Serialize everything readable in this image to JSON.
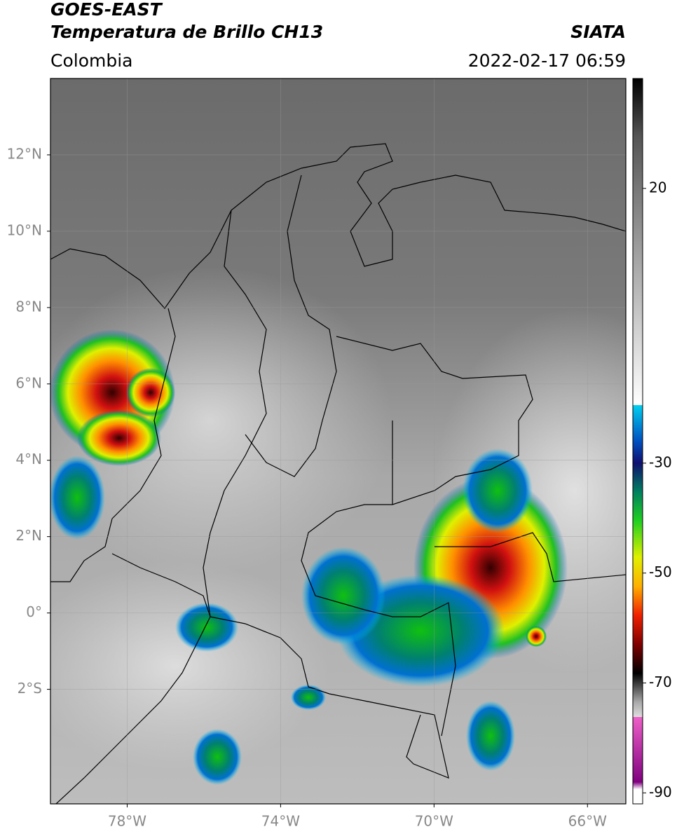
{
  "header": {
    "title": "GOES-EAST",
    "subtitle": "Temperatura de Brillo CH13",
    "source": "SIATA",
    "region": "Colombia",
    "datetime": "2022-02-17 06:59"
  },
  "map": {
    "xlim": [
      -80,
      -65
    ],
    "ylim": [
      -5,
      14
    ],
    "xticks": [
      {
        "value": -78,
        "label": "78°W"
      },
      {
        "value": -74,
        "label": "74°W"
      },
      {
        "value": -70,
        "label": "70°W"
      },
      {
        "value": -66,
        "label": "66°W"
      }
    ],
    "yticks": [
      {
        "value": -2,
        "label": "2°S"
      },
      {
        "value": 0,
        "label": "0°"
      },
      {
        "value": 2,
        "label": "2°N"
      },
      {
        "value": 4,
        "label": "4°N"
      },
      {
        "value": 6,
        "label": "6°N"
      },
      {
        "value": 8,
        "label": "8°N"
      },
      {
        "value": 10,
        "label": "10°N"
      },
      {
        "value": 12,
        "label": "12°N"
      }
    ]
  },
  "colorbar": {
    "lim": [
      -92,
      40
    ],
    "ticks": [
      20,
      -30,
      -50,
      -70,
      -90
    ]
  }
}
